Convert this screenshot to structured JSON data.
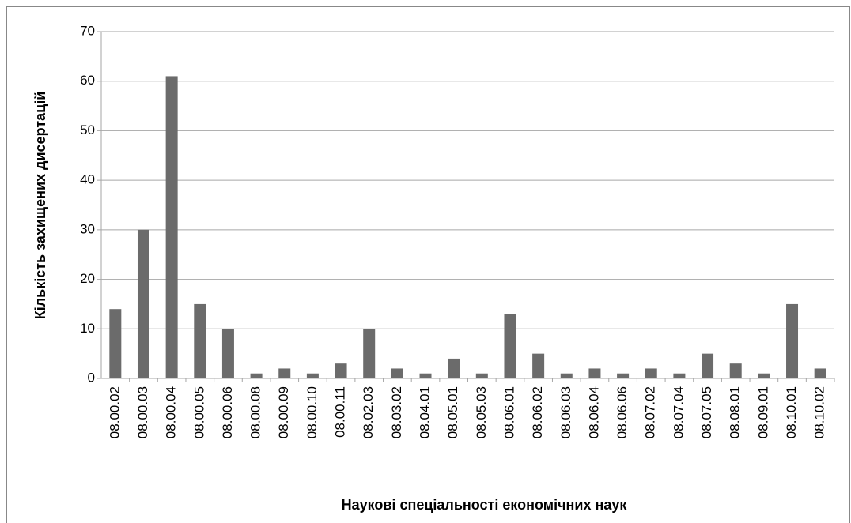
{
  "chart_data": {
    "type": "bar",
    "x_label": "Наукові спеціальності економічних наук",
    "y_label": "Кількість захищених дисертацій",
    "categories": [
      "08.00.02",
      "08.00.03",
      "08.00.04",
      "08.00.05",
      "08.00.06",
      "08.00.08",
      "08.00.09",
      "08.00.10",
      "08.00.11",
      "08.02.03",
      "08.03.02",
      "08.04.01",
      "08.05.01",
      "08.05.03",
      "08.06.01",
      "08.06.02",
      "08.06.03",
      "08.06.04",
      "08.06.06",
      "08.07.02",
      "08.07.04",
      "08.07.05",
      "08.08.01",
      "08.09.01",
      "08.10.01",
      "08.10.02"
    ],
    "values": [
      14,
      30,
      61,
      15,
      10,
      1,
      2,
      1,
      3,
      10,
      2,
      1,
      4,
      1,
      13,
      5,
      1,
      2,
      1,
      2,
      1,
      5,
      3,
      1,
      15,
      2
    ],
    "color": "#6b6b6b",
    "ylim": [
      0,
      70
    ],
    "yticks": [
      0,
      10,
      20,
      30,
      40,
      50,
      60,
      70
    ],
    "grid": true
  }
}
